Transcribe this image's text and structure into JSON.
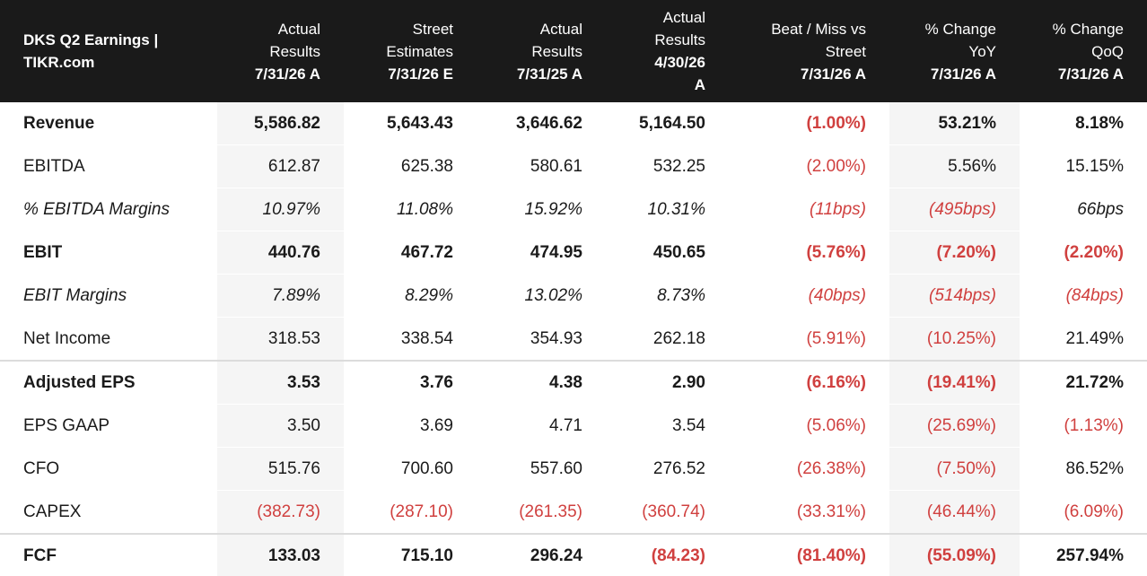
{
  "chart_data": {
    "type": "table",
    "title": "DKS Q2 Earnings | TIKR.com",
    "columns": [
      {
        "lines": [
          "Actual",
          "Results"
        ],
        "date_lines": [
          "7/31/26 A"
        ]
      },
      {
        "lines": [
          "Street",
          "Estimates"
        ],
        "date_lines": [
          "7/31/26 E"
        ]
      },
      {
        "lines": [
          "Actual",
          "Results"
        ],
        "date_lines": [
          "7/31/25 A"
        ]
      },
      {
        "lines": [
          "Actual",
          "Results"
        ],
        "date_lines": [
          "4/30/26",
          "A"
        ]
      },
      {
        "lines": [
          "Beat / Miss vs",
          "Street"
        ],
        "date_lines": [
          "7/31/26 A"
        ]
      },
      {
        "lines": [
          "% Change",
          "YoY"
        ],
        "date_lines": [
          "7/31/26 A"
        ]
      },
      {
        "lines": [
          "% Change",
          "QoQ"
        ],
        "date_lines": [
          "7/31/26 A"
        ]
      }
    ],
    "rows": [
      {
        "label": "Revenue",
        "style": "bold",
        "values": [
          "5,586.82",
          "5,643.43",
          "3,646.62",
          "5,164.50",
          "(1.00%)",
          "53.21%",
          "8.18%"
        ]
      },
      {
        "label": "EBITDA",
        "style": "normal",
        "values": [
          "612.87",
          "625.38",
          "580.61",
          "532.25",
          "(2.00%)",
          "5.56%",
          "15.15%"
        ]
      },
      {
        "label": "% EBITDA Margins",
        "style": "italic",
        "values": [
          "10.97%",
          "11.08%",
          "15.92%",
          "10.31%",
          "(11bps)",
          "(495bps)",
          "66bps"
        ]
      },
      {
        "label": "EBIT",
        "style": "bold",
        "values": [
          "440.76",
          "467.72",
          "474.95",
          "450.65",
          "(5.76%)",
          "(7.20%)",
          "(2.20%)"
        ]
      },
      {
        "label": "EBIT Margins",
        "style": "italic",
        "values": [
          "7.89%",
          "8.29%",
          "13.02%",
          "8.73%",
          "(40bps)",
          "(514bps)",
          "(84bps)"
        ]
      },
      {
        "label": "Net Income",
        "style": "normal",
        "values": [
          "318.53",
          "338.54",
          "354.93",
          "262.18",
          "(5.91%)",
          "(10.25%)",
          "21.49%"
        ]
      },
      {
        "label": "Adjusted EPS",
        "style": "bold",
        "values": [
          "3.53",
          "3.76",
          "4.38",
          "2.90",
          "(6.16%)",
          "(19.41%)",
          "21.72%"
        ]
      },
      {
        "label": "EPS GAAP",
        "style": "normal",
        "values": [
          "3.50",
          "3.69",
          "4.71",
          "3.54",
          "(5.06%)",
          "(25.69%)",
          "(1.13%)"
        ]
      },
      {
        "label": "CFO",
        "style": "normal",
        "values": [
          "515.76",
          "700.60",
          "557.60",
          "276.52",
          "(26.38%)",
          "(7.50%)",
          "86.52%"
        ]
      },
      {
        "label": "CAPEX",
        "style": "normal",
        "values": [
          "(382.73)",
          "(287.10)",
          "(261.35)",
          "(360.74)",
          "(33.31%)",
          "(46.44%)",
          "(6.09%)"
        ]
      },
      {
        "label": "FCF",
        "style": "bold",
        "values": [
          "133.03",
          "715.10",
          "296.24",
          "(84.23)",
          "(81.40%)",
          "(55.09%)",
          "257.94%"
        ]
      }
    ],
    "shaded_columns": [
      0,
      5
    ],
    "rule_above_rows": [
      0,
      6,
      10
    ],
    "colors": {
      "header_bg": "#1a1a1a",
      "header_text": "#ffffff",
      "negative": "#d0403f",
      "shade": "#f5f5f5",
      "text": "#1a1a1a"
    }
  }
}
